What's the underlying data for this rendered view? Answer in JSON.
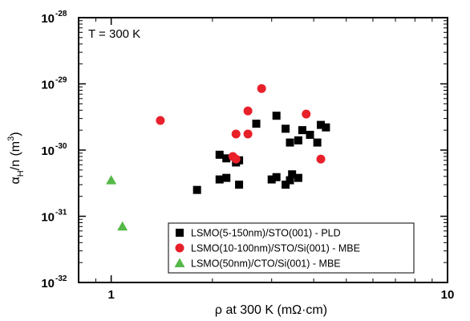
{
  "chart_data": {
    "type": "scatter",
    "xlabel_prefix": "ρ at 300 K (mΩ·cm)",
    "ylabel": {
      "base": "α",
      "sub": "H",
      "rest": "/n (m",
      "sup": "3",
      "end": ")"
    },
    "annotation": "T = 300 K",
    "x_scale": "log",
    "y_scale": "log",
    "xlim": [
      0.8,
      10
    ],
    "ylim": [
      1e-32,
      1e-28
    ],
    "x_ticks": [
      {
        "value": 1,
        "label": "1"
      },
      {
        "value": 10,
        "label": "10"
      }
    ],
    "y_ticks": [
      {
        "value": 1e-28,
        "base": "10",
        "exp": "-28"
      },
      {
        "value": 1e-29,
        "base": "10",
        "exp": "-29"
      },
      {
        "value": 1e-30,
        "base": "10",
        "exp": "-30"
      },
      {
        "value": 1e-31,
        "base": "10",
        "exp": "-31"
      },
      {
        "value": 1e-32,
        "base": "10",
        "exp": "-32"
      }
    ],
    "grid": false,
    "legend_position": "bottom-right",
    "series": [
      {
        "name": "LSMO(5-150nm)/STO(001) - PLD",
        "marker": "square",
        "color": "#000000",
        "points": [
          [
            1.8,
            2.5e-31
          ],
          [
            2.1,
            3.6e-31
          ],
          [
            2.2,
            3.8e-31
          ],
          [
            2.4,
            3e-31
          ],
          [
            2.1,
            8.5e-31
          ],
          [
            2.2,
            7.5e-31
          ],
          [
            2.35,
            6.5e-31
          ],
          [
            2.4,
            7e-31
          ],
          [
            2.7,
            2.5e-30
          ],
          [
            3.0,
            3.6e-31
          ],
          [
            3.1,
            3.9e-31
          ],
          [
            3.1,
            3.3e-30
          ],
          [
            3.3,
            3e-31
          ],
          [
            3.4,
            3.5e-31
          ],
          [
            3.45,
            4.3e-31
          ],
          [
            3.6,
            3.8e-31
          ],
          [
            3.3,
            2.1e-30
          ],
          [
            3.4,
            1.3e-30
          ],
          [
            3.6,
            1.4e-30
          ],
          [
            3.7,
            2e-30
          ],
          [
            3.9,
            1.7e-30
          ],
          [
            4.1,
            1.3e-30
          ],
          [
            4.2,
            2.4e-30
          ],
          [
            4.35,
            2.2e-30
          ]
        ]
      },
      {
        "name": "LSMO(10-100nm)/STO/Si(001) - MBE",
        "marker": "circle",
        "color": "#e8202a",
        "points": [
          [
            1.4,
            2.8e-30
          ],
          [
            2.3,
            8e-31
          ],
          [
            2.35,
            7.3e-31
          ],
          [
            2.35,
            1.75e-30
          ],
          [
            2.55,
            1.75e-30
          ],
          [
            2.55,
            3.9e-30
          ],
          [
            2.8,
            8.5e-30
          ],
          [
            3.8,
            3.5e-30
          ],
          [
            4.2,
            7.3e-31
          ]
        ]
      },
      {
        "name": "LSMO(50nm)/CTO/Si(001) - MBE",
        "marker": "triangle",
        "color": "#55b848",
        "points": [
          [
            1.0,
            3.5e-31
          ],
          [
            1.08,
            7e-32
          ]
        ]
      }
    ]
  }
}
